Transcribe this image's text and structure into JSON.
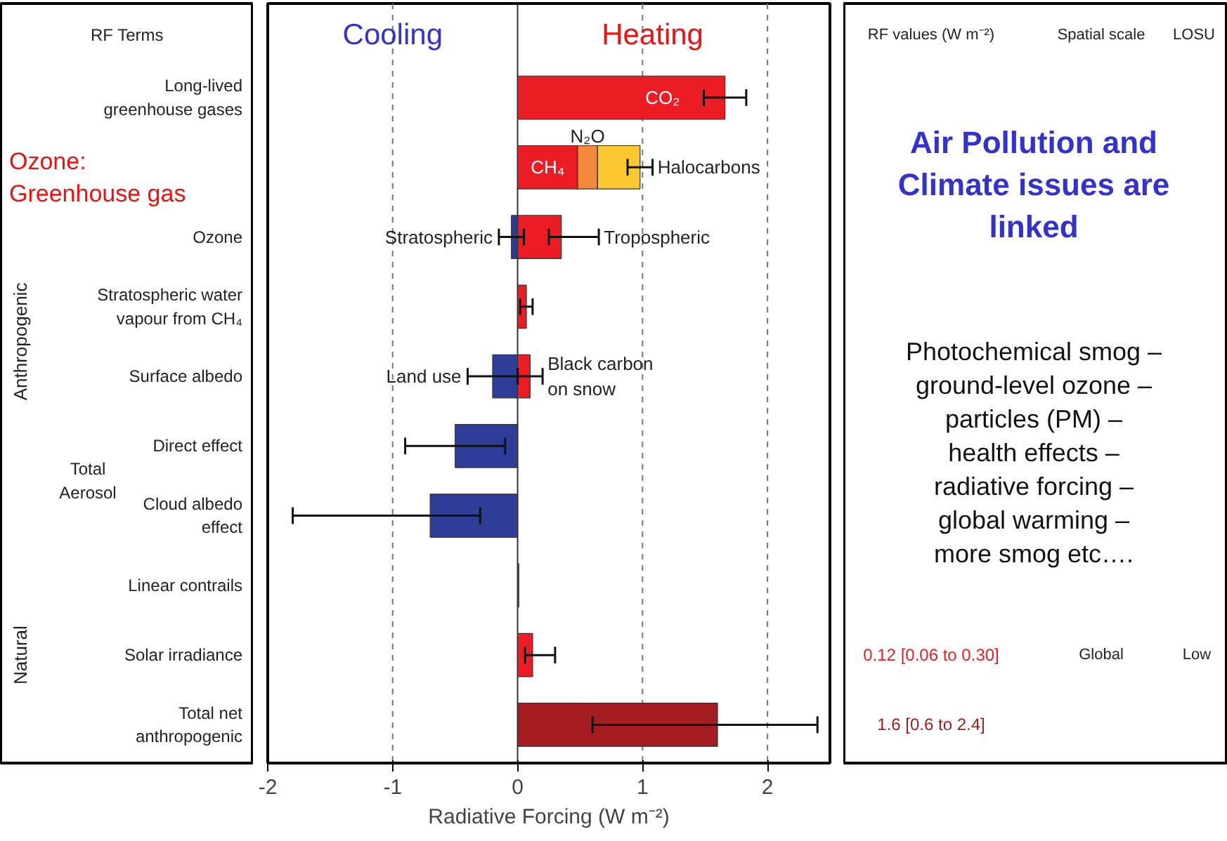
{
  "chart_data": {
    "type": "bar",
    "orientation": "horizontal",
    "xlabel": "Radiative Forcing (W m⁻²)",
    "categories": [
      "Long-lived greenhouse gases",
      null,
      "Ozone",
      "Stratospheric water vapour from CH₄",
      "Surface albedo",
      "Direct effect",
      "Cloud albedo effect",
      "Linear contrails",
      "Solar irradiance",
      "Total net anthropogenic"
    ],
    "series": [
      {
        "name": "CO₂",
        "color": "#ec1c24",
        "values": [
          1.66,
          null,
          null,
          null,
          null,
          null,
          null,
          null,
          null,
          null
        ],
        "errors": [
          [
            1.49,
            1.83
          ],
          null,
          null,
          null,
          null,
          null,
          null,
          null,
          null,
          null
        ]
      },
      {
        "name": "CH₄",
        "color": "#ec1c24",
        "values": [
          null,
          0.48,
          null,
          null,
          null,
          null,
          null,
          null,
          null,
          null
        ]
      },
      {
        "name": "N₂O",
        "color": "#f4883a",
        "values": [
          null,
          0.16,
          null,
          null,
          null,
          null,
          null,
          null,
          null,
          null
        ],
        "base": [
          null,
          0.48,
          null,
          null,
          null,
          null,
          null,
          null,
          null,
          null
        ]
      },
      {
        "name": "Halocarbons",
        "color": "#fdc82f",
        "values": [
          null,
          0.34,
          null,
          null,
          null,
          null,
          null,
          null,
          null,
          null
        ],
        "base": [
          null,
          0.64,
          null,
          null,
          null,
          null,
          null,
          null,
          null,
          null
        ],
        "errors": [
          null,
          [
            0.88,
            1.08
          ],
          null,
          null,
          null,
          null,
          null,
          null,
          null,
          null
        ]
      },
      {
        "name": "Stratospheric",
        "color": "#2e3d98",
        "values": [
          null,
          null,
          -0.05,
          null,
          null,
          null,
          null,
          null,
          null,
          null
        ],
        "errors": [
          null,
          null,
          [
            -0.15,
            0.05
          ],
          null,
          null,
          null,
          null,
          null,
          null,
          null
        ]
      },
      {
        "name": "Tropospheric",
        "color": "#ec1c24",
        "values": [
          null,
          null,
          0.35,
          null,
          null,
          null,
          null,
          null,
          null,
          null
        ],
        "errors": [
          null,
          null,
          [
            0.25,
            0.65
          ],
          null,
          null,
          null,
          null,
          null,
          null,
          null
        ]
      },
      {
        "color": "#ec1c24",
        "values": [
          null,
          null,
          null,
          0.07,
          null,
          null,
          null,
          0.01,
          null,
          null
        ],
        "errors": [
          null,
          null,
          null,
          [
            0.02,
            0.12
          ],
          null,
          null,
          null,
          null,
          null,
          null
        ]
      },
      {
        "name": "Land use",
        "color": "#2e3d98",
        "values": [
          null,
          null,
          null,
          null,
          -0.2,
          null,
          null,
          null,
          null,
          null
        ],
        "errors": [
          null,
          null,
          null,
          null,
          [
            -0.4,
            0.0
          ],
          null,
          null,
          null,
          null,
          null
        ]
      },
      {
        "name": "Black carbon on snow",
        "color": "#ec1c24",
        "values": [
          null,
          null,
          null,
          null,
          0.1,
          null,
          null,
          null,
          null,
          null
        ],
        "errors": [
          null,
          null,
          null,
          null,
          [
            0.0,
            0.2
          ],
          null,
          null,
          null,
          null,
          null
        ]
      },
      {
        "color": "#2e3d98",
        "values": [
          null,
          null,
          null,
          null,
          null,
          -0.5,
          -0.7,
          null,
          null,
          null
        ],
        "errors": [
          null,
          null,
          null,
          null,
          null,
          [
            -0.9,
            -0.1
          ],
          [
            -1.8,
            -0.3
          ],
          null,
          null,
          null
        ]
      },
      {
        "color": "#ec1c24",
        "values": [
          null,
          null,
          null,
          null,
          null,
          null,
          null,
          null,
          0.12,
          null
        ],
        "errors": [
          null,
          null,
          null,
          null,
          null,
          null,
          null,
          null,
          [
            0.06,
            0.3
          ],
          null
        ]
      },
      {
        "color": "#a51c22",
        "values": [
          null,
          null,
          null,
          null,
          null,
          null,
          null,
          null,
          null,
          1.6
        ],
        "errors": [
          null,
          null,
          null,
          null,
          null,
          null,
          null,
          null,
          null,
          [
            0.6,
            2.4
          ]
        ]
      }
    ],
    "xlim": [
      -2,
      2.5
    ],
    "xticks": [
      -2,
      -1,
      0,
      1,
      2
    ],
    "ref_lines": [
      {
        "axis": "x",
        "value": -1,
        "line_style": "dashed",
        "color": "#777777"
      },
      {
        "axis": "x",
        "value": 0,
        "line_style": "solid",
        "color": "#333333"
      },
      {
        "axis": "x",
        "value": 1,
        "line_style": "dashed",
        "color": "#777777"
      },
      {
        "axis": "x",
        "value": 2,
        "line_style": "dashed",
        "color": "#777777"
      }
    ],
    "annotations": [
      "RF Terms",
      "Cooling",
      "Heating",
      "Ozone: Greenhouse gas",
      "Anthropogenic",
      "Natural",
      "Total Aerosol",
      "RF values (W m⁻²)",
      "Spatial scale",
      "LOSU",
      "Global",
      "Low",
      "0.12 [0.06 to 0.30]",
      "1.6 [0.6 to 2.4]",
      "Air Pollution and Climate issues are linked",
      "Photochemical smog – ground-level ozone – particles (PM) – health effects – radiative forcing – global warming – more smog etc…."
    ]
  }
}
